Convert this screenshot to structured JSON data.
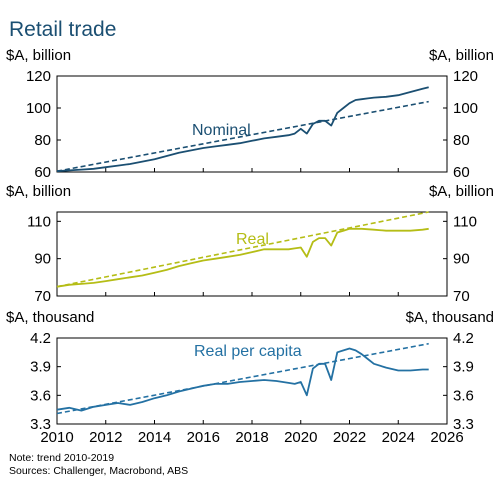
{
  "title": "Retail trade",
  "colors": {
    "nominal": "#1b4f72",
    "real": "#b5bd16",
    "per_capita": "#2471a3",
    "axis": "#000000"
  },
  "chart_data": [
    {
      "type": "line",
      "unit_left": "$A, billion",
      "unit_right": "$A, billion",
      "ylim": [
        60,
        120
      ],
      "yticks": [
        60,
        80,
        100,
        120
      ],
      "label": "Nominal",
      "series": [
        {
          "name": "Nominal",
          "x": [
            2010.0,
            2010.5,
            2011.0,
            2011.5,
            2012.0,
            2012.5,
            2013.0,
            2013.5,
            2014.0,
            2014.5,
            2015.0,
            2015.5,
            2016.0,
            2016.5,
            2017.0,
            2017.5,
            2018.0,
            2018.5,
            2019.0,
            2019.5,
            2019.75,
            2020.0,
            2020.25,
            2020.5,
            2020.75,
            2021.0,
            2021.25,
            2021.5,
            2021.75,
            2022.0,
            2022.25,
            2022.5,
            2022.75,
            2023.0,
            2023.5,
            2024.0,
            2024.5,
            2025.0,
            2025.25
          ],
          "y": [
            60.5,
            61,
            61.5,
            62,
            63,
            64,
            65,
            66.5,
            68,
            70,
            72,
            73.5,
            75,
            76,
            77,
            78,
            79.5,
            81,
            82,
            83,
            84,
            87,
            84,
            90,
            92,
            92,
            89,
            97,
            100,
            103,
            105,
            105.5,
            106,
            106.5,
            107,
            108,
            110,
            112,
            113
          ]
        },
        {
          "name": "trend",
          "dashed": true,
          "x": [
            2010,
            2025.25
          ],
          "y": [
            60.5,
            104
          ]
        }
      ]
    },
    {
      "type": "line",
      "unit_left": "$A, billion",
      "unit_right": "$A, billion",
      "ylim": [
        70,
        115
      ],
      "yticks": [
        70,
        90,
        110
      ],
      "label": "Real",
      "series": [
        {
          "name": "Real",
          "x": [
            2010.0,
            2010.5,
            2011.0,
            2011.5,
            2012.0,
            2012.5,
            2013.0,
            2013.5,
            2014.0,
            2014.5,
            2015.0,
            2015.5,
            2016.0,
            2016.5,
            2017.0,
            2017.5,
            2018.0,
            2018.5,
            2019.0,
            2019.5,
            2019.75,
            2020.0,
            2020.25,
            2020.5,
            2020.75,
            2021.0,
            2021.25,
            2021.5,
            2021.75,
            2022.0,
            2022.5,
            2023.0,
            2023.5,
            2024.0,
            2024.5,
            2025.0,
            2025.25
          ],
          "y": [
            75,
            76,
            76.5,
            77,
            78,
            79,
            80,
            81,
            82.5,
            84,
            86,
            87.5,
            89,
            90,
            91,
            92,
            93.5,
            95,
            95,
            95,
            95.5,
            96,
            91,
            99,
            101,
            101,
            97,
            104,
            105,
            106,
            106,
            105.5,
            105,
            105,
            105,
            105.5,
            106
          ]
        },
        {
          "name": "trend",
          "dashed": true,
          "x": [
            2010,
            2025.25
          ],
          "y": [
            75,
            115
          ]
        }
      ]
    },
    {
      "type": "line",
      "unit_left": "$A, thousand",
      "unit_right": "$A, thousand",
      "ylim": [
        3.3,
        4.2
      ],
      "yticks": [
        3.3,
        3.6,
        3.9,
        4.2
      ],
      "label": "Real per capita",
      "series": [
        {
          "name": "Real per capita",
          "x": [
            2010.0,
            2010.5,
            2011.0,
            2011.5,
            2012.0,
            2012.5,
            2013.0,
            2013.5,
            2014.0,
            2014.5,
            2015.0,
            2015.5,
            2016.0,
            2016.5,
            2017.0,
            2017.5,
            2018.0,
            2018.5,
            2019.0,
            2019.5,
            2019.75,
            2020.0,
            2020.25,
            2020.5,
            2020.75,
            2021.0,
            2021.25,
            2021.5,
            2021.75,
            2022.0,
            2022.25,
            2022.5,
            2022.75,
            2023.0,
            2023.5,
            2024.0,
            2024.5,
            2025.0,
            2025.25
          ],
          "y": [
            3.45,
            3.47,
            3.44,
            3.48,
            3.5,
            3.52,
            3.5,
            3.53,
            3.57,
            3.6,
            3.64,
            3.67,
            3.7,
            3.72,
            3.72,
            3.74,
            3.75,
            3.76,
            3.75,
            3.73,
            3.72,
            3.74,
            3.6,
            3.88,
            3.93,
            3.93,
            3.76,
            4.05,
            4.07,
            4.09,
            4.07,
            4.03,
            3.98,
            3.93,
            3.89,
            3.86,
            3.86,
            3.87,
            3.87
          ]
        },
        {
          "name": "trend",
          "dashed": true,
          "x": [
            2010,
            2025.25
          ],
          "y": [
            3.41,
            4.14
          ]
        }
      ]
    }
  ],
  "xaxis": {
    "min": 2010,
    "max": 2026,
    "ticks": [
      2010,
      2012,
      2014,
      2016,
      2018,
      2020,
      2022,
      2024,
      2026
    ]
  },
  "footnotes": [
    "Note: trend 2010-2019",
    "Sources: Challenger, Macrobond, ABS"
  ]
}
